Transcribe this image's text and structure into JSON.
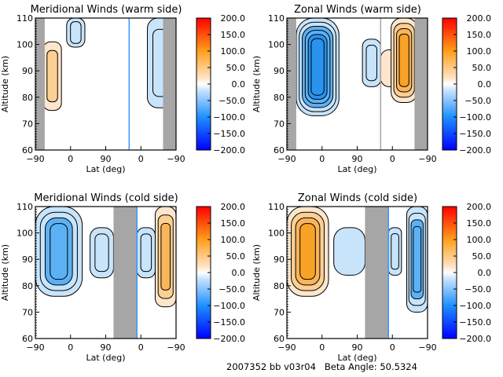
{
  "footer": {
    "run_id": "2007352 bb v03r04",
    "beta_label": "Beta Angle:",
    "beta_value": "50.5324"
  },
  "colorbar": {
    "ticks": [
      "200.0",
      "150.0",
      "100.0",
      "50.0",
      "0.0",
      "−50.0",
      "−100.0",
      "−150.0",
      "−200.0"
    ],
    "range": [
      -200,
      200
    ],
    "colors": {
      "neg_max": "#0000ff",
      "neg_mid": "#1e90ff",
      "neg_low": "#c6e2ff",
      "zero": "#ffffff",
      "pos_low": "#ffe2c0",
      "pos_mid": "#ff9f1a",
      "pos_max": "#ff0000"
    }
  },
  "contour_colors": {
    "neg3": "#2a93ef",
    "neg2": "#5cb1f4",
    "neg1": "#c8e4fb",
    "pos1": "#fde6cc",
    "pos2": "#fccf93",
    "pos3": "#fab45a",
    "pos4": "#f9a326",
    "no_data": "#a6a6a6",
    "terminator": "#3399ff"
  },
  "chart_data": [
    {
      "type": "heatmap",
      "title": "Meridional Winds (warm side)",
      "xlabel": "Lat (deg)",
      "ylabel": "Altitude (km)",
      "xticks": [
        "−90",
        "0",
        "90",
        "0",
        "−90"
      ],
      "yticks": [
        "110",
        "100",
        "90",
        "80",
        "70",
        "60"
      ],
      "ylim": [
        60,
        110
      ],
      "x_units": "orbit latitude path -90 → 0 → 90 → 0 → -90",
      "no_data_bands": [
        [
          -90,
          -72
        ],
        [
          155,
          180
        ]
      ],
      "colorbar_range": [
        -200,
        200
      ],
      "features": [
        {
          "sign": "positive",
          "peak": 50,
          "lat_path": [
            -75,
            -40
          ],
          "alt": [
            75,
            101
          ]
        },
        {
          "sign": "negative",
          "peak": -50,
          "lat_path": [
            -30,
            5
          ],
          "alt": [
            99,
            110
          ]
        },
        {
          "sign": "negative",
          "peak": -50,
          "lat_path": [
            125,
            175
          ],
          "alt": [
            76,
            110
          ]
        },
        {
          "sign": "positive",
          "peak": 50,
          "lat_path": [
            170,
            178
          ],
          "alt": [
            76,
            100
          ]
        }
      ]
    },
    {
      "type": "heatmap",
      "title": "Zonal Winds (warm side)",
      "xlabel": "Lat (deg)",
      "ylabel": "Altitude (km)",
      "xticks": [
        "−90",
        "0",
        "90",
        "0",
        "−90"
      ],
      "yticks": [
        "110",
        "100",
        "90",
        "80",
        "70",
        "60"
      ],
      "ylim": [
        60,
        110
      ],
      "no_data_bands": [
        [
          -90,
          -72
        ],
        [
          155,
          180
        ]
      ],
      "colorbar_range": [
        -200,
        200
      ],
      "features": [
        {
          "sign": "negative",
          "peak": -150,
          "lat_path": [
            -72,
            10
          ],
          "alt": [
            73,
            110
          ]
        },
        {
          "sign": "negative",
          "peak": -50,
          "lat_path": [
            55,
            90
          ],
          "alt": [
            84,
            102
          ]
        },
        {
          "sign": "positive",
          "peak": 25,
          "lat_path": [
            90,
            130
          ],
          "alt": [
            84,
            98
          ]
        },
        {
          "sign": "positive",
          "peak": 100,
          "lat_path": [
            110,
            160
          ],
          "alt": [
            78,
            110
          ]
        }
      ]
    },
    {
      "type": "heatmap",
      "title": "Meridional Winds (cold side)",
      "xlabel": "Lat (deg)",
      "ylabel": "Altitude (km)",
      "xticks": [
        "−90",
        "0",
        "90",
        "0",
        "−90"
      ],
      "yticks": [
        "110",
        "100",
        "90",
        "80",
        "70",
        "60"
      ],
      "ylim": [
        60,
        110
      ],
      "no_data_bands": [
        [
          60,
          105
        ]
      ],
      "colorbar_range": [
        -200,
        200
      ],
      "features": [
        {
          "sign": "negative",
          "peak": -100,
          "lat_path": [
            -90,
            0
          ],
          "alt": [
            76,
            110
          ]
        },
        {
          "sign": "negative",
          "peak": -50,
          "lat_path": [
            15,
            60
          ],
          "alt": [
            83,
            102
          ]
        },
        {
          "sign": "negative",
          "peak": -50,
          "lat_path": [
            105,
            140
          ],
          "alt": [
            83,
            102
          ]
        },
        {
          "sign": "positive",
          "peak": 75,
          "lat_path": [
            140,
            180
          ],
          "alt": [
            72,
            110
          ]
        }
      ]
    },
    {
      "type": "heatmap",
      "title": "Zonal Winds (cold side)",
      "xlabel": "Lat (deg)",
      "ylabel": "Altitude (km)",
      "xticks": [
        "−90",
        "0",
        "90",
        "0",
        "−90"
      ],
      "yticks": [
        "110",
        "100",
        "90",
        "80",
        "70",
        "60"
      ],
      "ylim": [
        60,
        110
      ],
      "no_data_bands": [
        [
          60,
          105
        ]
      ],
      "colorbar_range": [
        -200,
        200
      ],
      "features": [
        {
          "sign": "positive",
          "peak": 100,
          "lat_path": [
            -90,
            -10
          ],
          "alt": [
            76,
            110
          ]
        },
        {
          "sign": "negative",
          "peak": -25,
          "lat_path": [
            0,
            60
          ],
          "alt": [
            84,
            102
          ]
        },
        {
          "sign": "negative",
          "peak": -50,
          "lat_path": [
            105,
            130
          ],
          "alt": [
            84,
            102
          ]
        },
        {
          "sign": "negative",
          "peak": -100,
          "lat_path": [
            140,
            180
          ],
          "alt": [
            70,
            110
          ]
        }
      ]
    }
  ]
}
